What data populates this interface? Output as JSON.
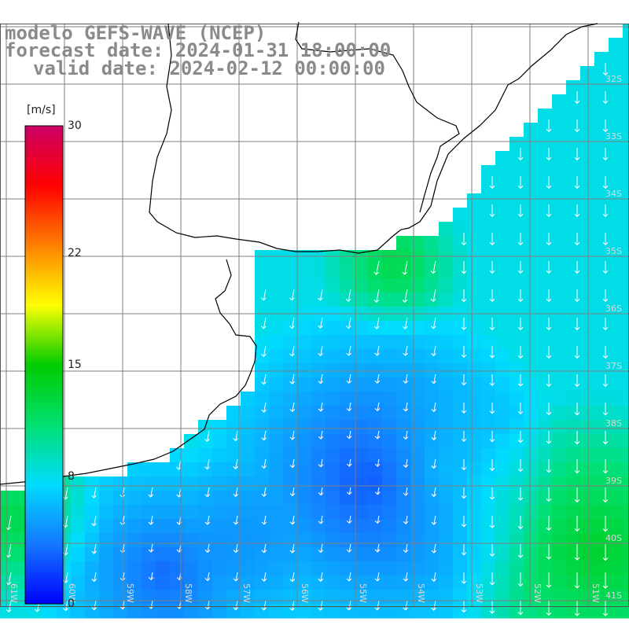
{
  "title": {
    "model": "modelo GEFS-WAVE (NCEP)",
    "forecast": "forecast date: 2024-01-31 18:00:00",
    "valid": "valid date: 2024-02-12 00:00:00"
  },
  "colorbar": {
    "unit": "[m/s]",
    "ticks": [
      "30",
      "22",
      "15",
      "8",
      "0"
    ],
    "tick_values": [
      30,
      22,
      15,
      8,
      0
    ],
    "range": [
      0,
      30
    ],
    "colors": [
      "#0000ff",
      "#1478ff",
      "#00dcff",
      "#00e070",
      "#00cc00",
      "#ffff00",
      "#ff8000",
      "#ff0000",
      "#cc0066"
    ]
  },
  "grid": {
    "lat_labels": [
      "32S",
      "33S",
      "34S",
      "35S",
      "36S",
      "37S",
      "38S",
      "39S",
      "40S",
      "41S"
    ],
    "lon_labels": [
      "61W",
      "60W",
      "59W",
      "58W",
      "57W",
      "56W",
      "55W",
      "54W",
      "53W",
      "52W",
      "51W"
    ],
    "lat_range": [
      -41.5,
      -31.5
    ],
    "lon_range": [
      -61.5,
      -50.5
    ]
  },
  "map": {
    "land_color": "#ffffff",
    "coast_color": "#000000",
    "gridline_color": "#7f7f7f",
    "arrow_color": "#ffffff"
  }
}
